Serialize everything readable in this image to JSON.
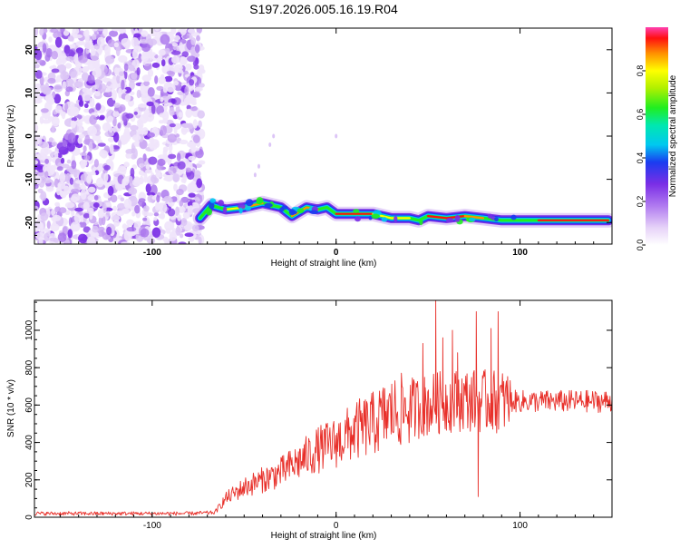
{
  "title": "S197.2026.005.16.19.R04",
  "chart_data": [
    {
      "type": "heatmap",
      "title": "S197.2026.005.16.19.R04",
      "xlabel": "Height of straight line (km)",
      "ylabel": "Frequency (Hz)",
      "xlim": [
        -164,
        150
      ],
      "ylim": [
        -25,
        25
      ],
      "xticks": [
        -100,
        0,
        100
      ],
      "yticks": [
        -20,
        -10,
        0,
        10,
        20
      ],
      "noise_region_x": [
        -164,
        -73
      ],
      "signal_trace": {
        "x": [
          -74,
          -68,
          -60,
          -50,
          -40,
          -30,
          -24,
          -20,
          -16,
          -10,
          -5,
          0,
          10,
          20,
          30,
          40,
          45,
          50,
          60,
          70,
          80,
          90,
          100,
          110,
          120,
          130,
          140,
          148
        ],
        "y": [
          -19,
          -16,
          -17,
          -16.5,
          -15.5,
          -16.5,
          -18.5,
          -17.5,
          -16.5,
          -17,
          -16.5,
          -18,
          -18,
          -18,
          -19,
          -19,
          -19.5,
          -18.5,
          -19,
          -18.5,
          -19,
          -19.5,
          -19.5,
          -19.5,
          -19.5,
          -19.5,
          -19.5,
          -19.5
        ]
      },
      "colorbar": {
        "label": "Normalized spectral amplitude",
        "range": [
          0,
          1
        ],
        "ticks": [
          "0.0",
          "0.2",
          "0.4",
          "0.6",
          "0.8"
        ]
      }
    },
    {
      "type": "line",
      "xlabel": "Height of straight line (km)",
      "ylabel": "SNR (10 * v/v)",
      "xlim": [
        -164,
        150
      ],
      "ylim": [
        0,
        1160
      ],
      "xticks": [
        -100,
        0,
        100
      ],
      "yticks": [
        0,
        200,
        400,
        600,
        800,
        1000
      ],
      "color": "#e8302a",
      "series": [
        {
          "name": "SNR",
          "x": [
            -164,
            -140,
            -120,
            -100,
            -80,
            -66,
            -60,
            -55,
            -50,
            -40,
            -30,
            -20,
            -10,
            0,
            10,
            20,
            30,
            40,
            50,
            60,
            70,
            80,
            90,
            100,
            110,
            120,
            130,
            140,
            150
          ],
          "y": [
            20,
            20,
            20,
            20,
            20,
            25,
            100,
            130,
            160,
            200,
            240,
            300,
            360,
            400,
            460,
            500,
            560,
            580,
            600,
            620,
            630,
            620,
            620,
            620,
            620,
            620,
            620,
            620,
            620
          ]
        }
      ],
      "spikes": {
        "x": [
          47,
          48,
          54,
          58,
          63,
          66,
          76,
          77,
          84,
          88
        ],
        "y": [
          930,
          500,
          1160,
          960,
          1000,
          880,
          1100,
          110,
          1010,
          1100
        ]
      }
    }
  ]
}
